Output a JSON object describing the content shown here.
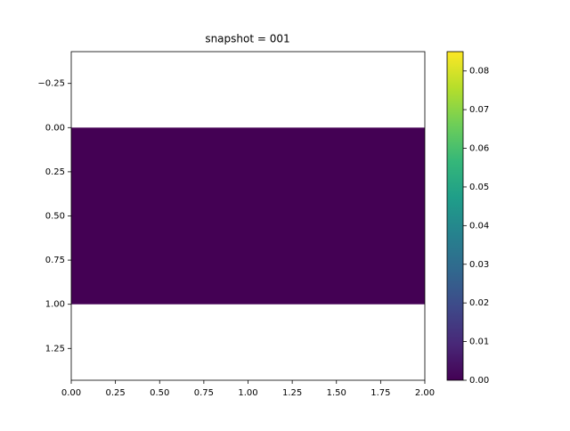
{
  "chart_data": {
    "type": "heatmap",
    "title": "snapshot = 001",
    "colormap": "viridis",
    "x_edges": [
      0,
      2
    ],
    "y_edges": [
      0,
      1
    ],
    "values": [
      [
        0
      ]
    ],
    "xlim": [
      0,
      2
    ],
    "ylim": [
      1.43,
      -0.43
    ],
    "xticks": [
      {
        "value": 0,
        "label": "0.00"
      },
      {
        "value": 0.25,
        "label": "0.25"
      },
      {
        "value": 0.5,
        "label": "0.50"
      },
      {
        "value": 0.75,
        "label": "0.75"
      },
      {
        "value": 1,
        "label": "1.00"
      },
      {
        "value": 1.25,
        "label": "1.25"
      },
      {
        "value": 1.5,
        "label": "1.50"
      },
      {
        "value": 1.75,
        "label": "1.75"
      },
      {
        "value": 2,
        "label": "2.00"
      }
    ],
    "yticks": [
      {
        "value": -0.25,
        "label": "−0.25"
      },
      {
        "value": 0,
        "label": "0.00"
      },
      {
        "value": 0.25,
        "label": "0.25"
      },
      {
        "value": 0.5,
        "label": "0.50"
      },
      {
        "value": 0.75,
        "label": "0.75"
      },
      {
        "value": 1,
        "label": "1.00"
      },
      {
        "value": 1.25,
        "label": "1.25"
      }
    ],
    "colorbar_lim": [
      0,
      0.085
    ],
    "colorbar_ticks": [
      {
        "value": 0,
        "label": "0.00"
      },
      {
        "value": 0.01,
        "label": "0.01"
      },
      {
        "value": 0.02,
        "label": "0.02"
      },
      {
        "value": 0.03,
        "label": "0.03"
      },
      {
        "value": 0.04,
        "label": "0.04"
      },
      {
        "value": 0.05,
        "label": "0.05"
      },
      {
        "value": 0.06,
        "label": "0.06"
      },
      {
        "value": 0.07,
        "label": "0.07"
      },
      {
        "value": 0.08,
        "label": "0.08"
      }
    ]
  }
}
